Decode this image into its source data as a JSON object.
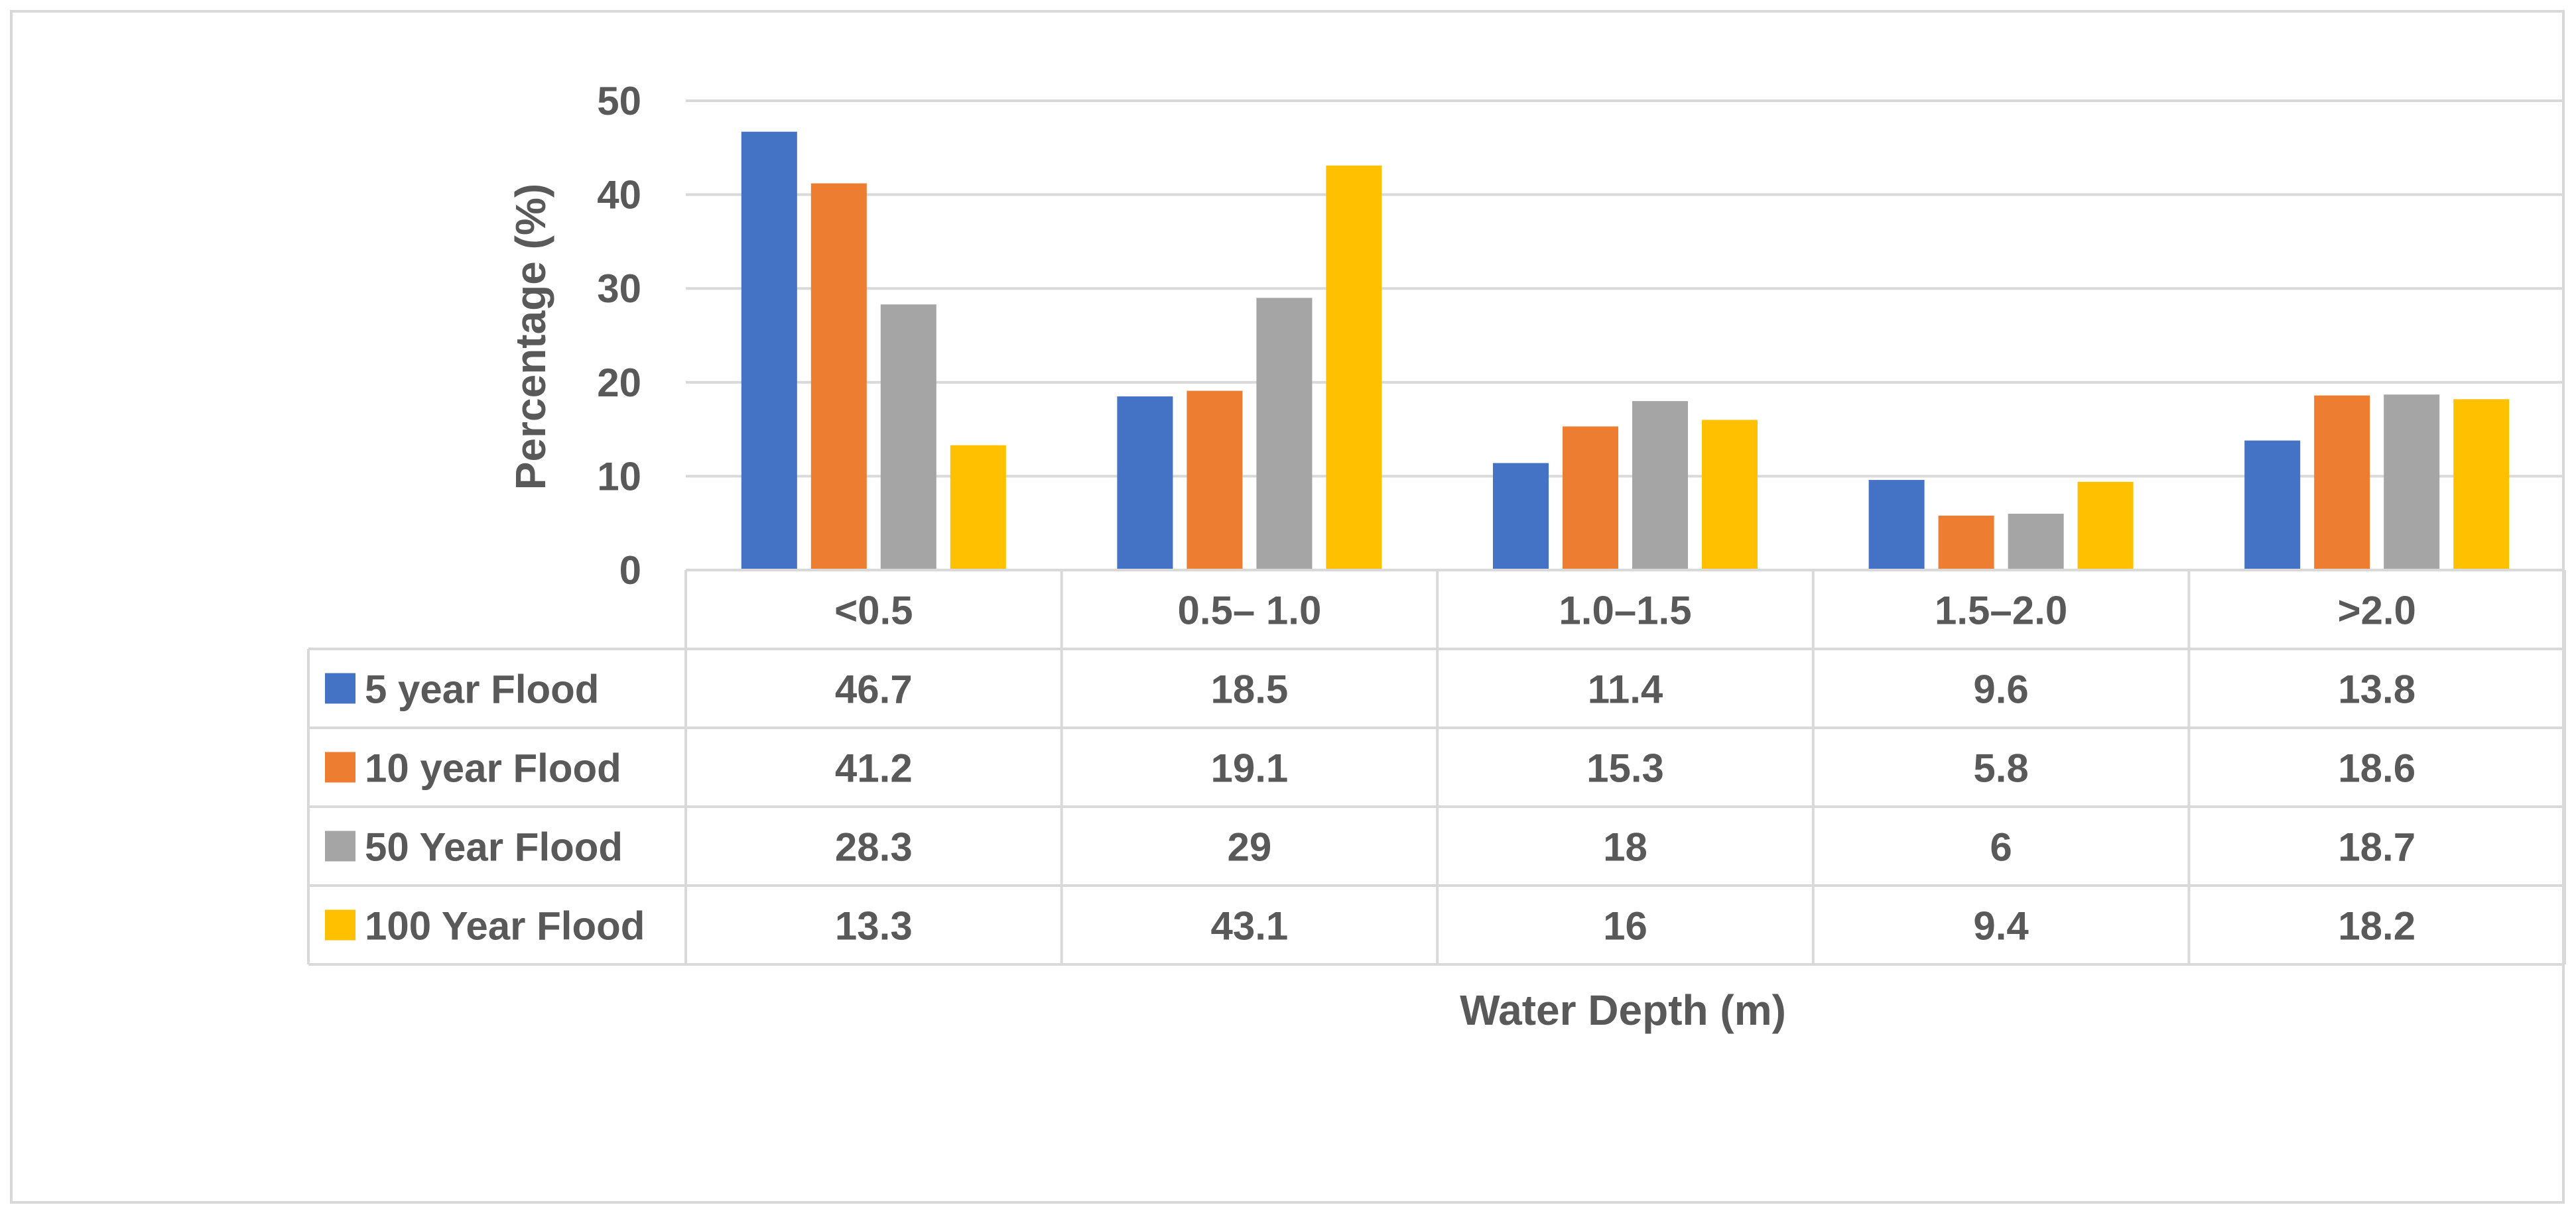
{
  "chart_data": {
    "type": "bar",
    "title": "",
    "xlabel": "Water Depth (m)",
    "ylabel": "Percentage (%)",
    "ylim": [
      0,
      50
    ],
    "yticks": [
      0,
      10,
      20,
      30,
      40,
      50
    ],
    "grid": true,
    "legend": "data-table",
    "categories": [
      "<0.5",
      "0.5– 1.0",
      "1.0–1.5",
      "1.5–2.0",
      ">2.0"
    ],
    "series": [
      {
        "name": "5 year Flood",
        "color": "#4472c4",
        "values": [
          46.7,
          18.5,
          11.4,
          9.6,
          13.8
        ]
      },
      {
        "name": "10 year Flood",
        "color": "#ed7d31",
        "values": [
          41.2,
          19.1,
          15.3,
          5.8,
          18.6
        ]
      },
      {
        "name": "50 Year Flood",
        "color": "#a5a5a5",
        "values": [
          28.3,
          29,
          18,
          6,
          18.7
        ]
      },
      {
        "name": "100 Year Flood",
        "color": "#ffc000",
        "values": [
          13.3,
          43.1,
          16,
          9.4,
          18.2
        ]
      }
    ]
  },
  "colors": {
    "grid": "#d9d9d9",
    "text": "#595959"
  }
}
